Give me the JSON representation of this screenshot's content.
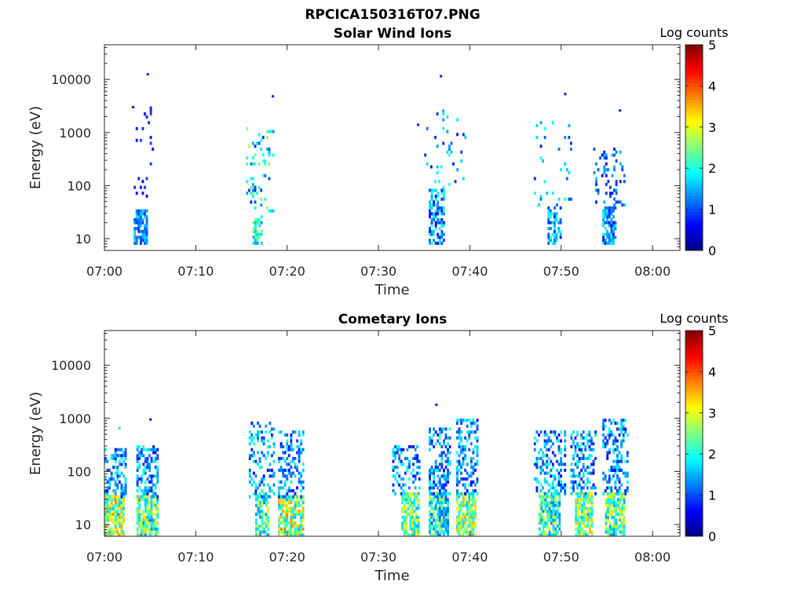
{
  "figure_title": "RPCICA150316T07.PNG",
  "chart_data": [
    {
      "type": "heatmap",
      "title": "Solar Wind Ions",
      "xlabel": "Time",
      "ylabel": "Energy (eV)",
      "x_unit": "minutes after 07:00",
      "xlim": [
        0,
        63
      ],
      "ylim": [
        6,
        45000
      ],
      "yscale": "log",
      "x_ticks": [
        0,
        10,
        20,
        30,
        40,
        50,
        60
      ],
      "x_tick_labels": [
        "07:00",
        "07:10",
        "07:20",
        "07:30",
        "07:40",
        "07:50",
        "08:00"
      ],
      "y_ticks": [
        10,
        100,
        1000,
        10000
      ],
      "y_tick_labels": [
        "10",
        "100",
        "1000",
        "10000"
      ],
      "colorbar": {
        "label": "Log counts",
        "range": [
          0,
          5
        ],
        "ticks": [
          0,
          1,
          2,
          3,
          4,
          5
        ],
        "tick_labels": [
          "0",
          "1",
          "2",
          "3",
          "4",
          "5"
        ]
      },
      "clusters": [
        {
          "t0": 3.2,
          "t1": 4.6,
          "emin": 8,
          "emax": 35,
          "density": 0.75,
          "level": [
            0.8,
            1.8
          ]
        },
        {
          "t0": 3.2,
          "t1": 5.2,
          "emin": 35,
          "emax": 3200,
          "density": 0.05,
          "level": [
            0.6,
            1.0
          ]
        },
        {
          "t0": 16.2,
          "t1": 17.2,
          "emin": 8,
          "emax": 25,
          "density": 0.7,
          "level": [
            1.2,
            2.6
          ]
        },
        {
          "t0": 15.5,
          "t1": 18.5,
          "emin": 25,
          "emax": 1400,
          "density": 0.12,
          "level": [
            0.8,
            2.8
          ]
        },
        {
          "t0": 35.5,
          "t1": 37.2,
          "emin": 8,
          "emax": 80,
          "density": 0.55,
          "level": [
            0.6,
            2.2
          ]
        },
        {
          "t0": 35.0,
          "t1": 39.5,
          "emin": 80,
          "emax": 2500,
          "density": 0.06,
          "level": [
            0.7,
            2.2
          ]
        },
        {
          "t0": 48.5,
          "t1": 50.0,
          "emin": 8,
          "emax": 40,
          "density": 0.55,
          "level": [
            0.7,
            2.2
          ]
        },
        {
          "t0": 47.0,
          "t1": 51.0,
          "emin": 40,
          "emax": 1500,
          "density": 0.07,
          "level": [
            0.7,
            2.0
          ]
        },
        {
          "t0": 54.5,
          "t1": 56.0,
          "emin": 8,
          "emax": 40,
          "density": 0.65,
          "level": [
            0.5,
            2.0
          ]
        },
        {
          "t0": 53.5,
          "t1": 57.0,
          "emin": 40,
          "emax": 500,
          "density": 0.18,
          "level": [
            0.6,
            1.6
          ]
        }
      ],
      "points": [
        {
          "t": 4.7,
          "e": 12500,
          "v": 0.7
        },
        {
          "t": 3.1,
          "e": 3000,
          "v": 0.7
        },
        {
          "t": 36.8,
          "e": 11500,
          "v": 0.7
        },
        {
          "t": 18.4,
          "e": 4800,
          "v": 0.7
        },
        {
          "t": 50.4,
          "e": 5300,
          "v": 0.7
        },
        {
          "t": 56.4,
          "e": 2600,
          "v": 0.7
        },
        {
          "t": 34.3,
          "e": 1400,
          "v": 0.7
        }
      ]
    },
    {
      "type": "heatmap",
      "title": "Cometary Ions",
      "xlabel": "Time",
      "ylabel": "Energy (eV)",
      "x_unit": "minutes after 07:00",
      "xlim": [
        0,
        63
      ],
      "ylim": [
        6,
        45000
      ],
      "yscale": "log",
      "x_ticks": [
        0,
        10,
        20,
        30,
        40,
        50,
        60
      ],
      "x_tick_labels": [
        "07:00",
        "07:10",
        "07:20",
        "07:30",
        "07:40",
        "07:50",
        "08:00"
      ],
      "y_ticks": [
        10,
        100,
        1000,
        10000
      ],
      "y_tick_labels": [
        "10",
        "100",
        "1000",
        "10000"
      ],
      "colorbar": {
        "label": "Log counts",
        "range": [
          0,
          5
        ],
        "ticks": [
          0,
          1,
          2,
          3,
          4,
          5
        ],
        "tick_labels": [
          "0",
          "1",
          "2",
          "3",
          "4",
          "5"
        ]
      },
      "clusters": [
        {
          "t0": 0.0,
          "t1": 2.0,
          "emin": 6,
          "emax": 35,
          "density": 0.85,
          "level": [
            1.5,
            3.7
          ]
        },
        {
          "t0": 0.0,
          "t1": 2.3,
          "emin": 35,
          "emax": 250,
          "density": 0.4,
          "level": [
            0.6,
            2.0
          ]
        },
        {
          "t0": 3.5,
          "t1": 5.8,
          "emin": 6,
          "emax": 35,
          "density": 0.8,
          "level": [
            1.3,
            3.4
          ]
        },
        {
          "t0": 3.5,
          "t1": 5.8,
          "emin": 35,
          "emax": 300,
          "density": 0.45,
          "level": [
            0.6,
            2.2
          ]
        },
        {
          "t0": 16.5,
          "t1": 18.0,
          "emin": 6,
          "emax": 35,
          "density": 0.7,
          "level": [
            1.2,
            3.0
          ]
        },
        {
          "t0": 15.8,
          "t1": 18.5,
          "emin": 35,
          "emax": 800,
          "density": 0.3,
          "level": [
            0.6,
            2.2
          ]
        },
        {
          "t0": 19.0,
          "t1": 21.8,
          "emin": 6,
          "emax": 35,
          "density": 0.8,
          "level": [
            1.5,
            3.8
          ]
        },
        {
          "t0": 19.0,
          "t1": 21.8,
          "emin": 35,
          "emax": 550,
          "density": 0.35,
          "level": [
            0.6,
            2.0
          ]
        },
        {
          "t0": 32.5,
          "t1": 34.3,
          "emin": 6,
          "emax": 40,
          "density": 0.8,
          "level": [
            1.5,
            3.3
          ]
        },
        {
          "t0": 31.5,
          "t1": 34.5,
          "emin": 40,
          "emax": 300,
          "density": 0.3,
          "level": [
            0.6,
            2.0
          ]
        },
        {
          "t0": 35.5,
          "t1": 37.5,
          "emin": 6,
          "emax": 40,
          "density": 0.8,
          "level": [
            1.0,
            2.8
          ]
        },
        {
          "t0": 35.5,
          "t1": 37.8,
          "emin": 40,
          "emax": 600,
          "density": 0.45,
          "level": [
            0.6,
            2.2
          ]
        },
        {
          "t0": 38.5,
          "t1": 40.5,
          "emin": 6,
          "emax": 40,
          "density": 0.8,
          "level": [
            1.5,
            3.6
          ]
        },
        {
          "t0": 38.5,
          "t1": 40.8,
          "emin": 40,
          "emax": 900,
          "density": 0.45,
          "level": [
            0.6,
            2.0
          ]
        },
        {
          "t0": 47.5,
          "t1": 49.8,
          "emin": 6,
          "emax": 40,
          "density": 0.8,
          "level": [
            1.2,
            3.0
          ]
        },
        {
          "t0": 47.0,
          "t1": 50.3,
          "emin": 40,
          "emax": 550,
          "density": 0.4,
          "level": [
            0.6,
            2.2
          ]
        },
        {
          "t0": 51.5,
          "t1": 53.3,
          "emin": 6,
          "emax": 40,
          "density": 0.8,
          "level": [
            1.5,
            3.5
          ]
        },
        {
          "t0": 51.0,
          "t1": 53.8,
          "emin": 40,
          "emax": 550,
          "density": 0.45,
          "level": [
            0.6,
            2.2
          ]
        },
        {
          "t0": 54.8,
          "t1": 56.8,
          "emin": 6,
          "emax": 40,
          "density": 0.8,
          "level": [
            1.3,
            3.3
          ]
        },
        {
          "t0": 54.5,
          "t1": 57.3,
          "emin": 40,
          "emax": 900,
          "density": 0.4,
          "level": [
            0.6,
            2.0
          ]
        }
      ],
      "points": [
        {
          "t": 36.3,
          "e": 1800,
          "v": 0.7
        },
        {
          "t": 1.6,
          "e": 650,
          "v": 1.8
        },
        {
          "t": 5.0,
          "e": 950,
          "v": 0.7
        }
      ]
    }
  ]
}
